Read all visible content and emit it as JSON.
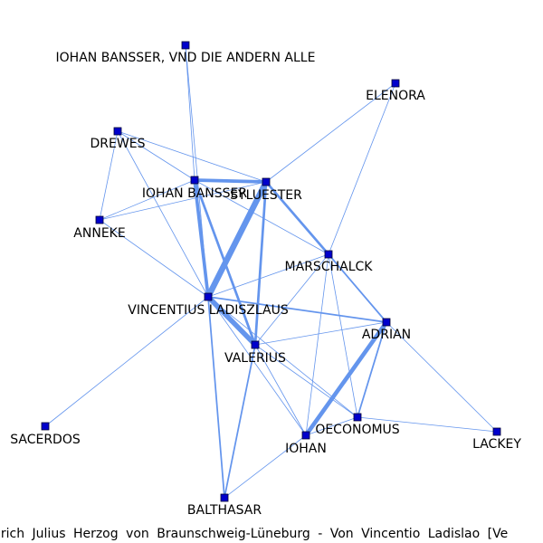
{
  "caption": "nrich Julius Herzog von Braunschweig-Lüneburg - Von Vincentio Ladislao [Ve",
  "colors": {
    "edge": "#6495ED",
    "node": "#0000CC"
  },
  "nodes": [
    {
      "id": "IOHAN BANSSER, VND DIE ANDERN ALLE",
      "label": "IOHAN BANSSER, VND DIE ANDERN ALLE"
    },
    {
      "id": "ELENORA",
      "label": "ELENORA"
    },
    {
      "id": "DREWES",
      "label": "DREWES"
    },
    {
      "id": "IOHAN BANSSER",
      "label": "IOHAN BANSSER"
    },
    {
      "id": "SYLUESTER",
      "label": "SYLUESTER"
    },
    {
      "id": "ANNEKE",
      "label": "ANNEKE"
    },
    {
      "id": "MARSCHALCK",
      "label": "MARSCHALCK"
    },
    {
      "id": "VINCENTIUS LADISZLAUS",
      "label": "VINCENTIUS LADISZLAUS"
    },
    {
      "id": "ADRIAN",
      "label": "ADRIAN"
    },
    {
      "id": "VALERIUS",
      "label": "VALERIUS"
    },
    {
      "id": "SACERDOS",
      "label": "SACERDOS"
    },
    {
      "id": "OECONOMUS",
      "label": "OECONOMUS"
    },
    {
      "id": "IOHAN",
      "label": "IOHAN"
    },
    {
      "id": "LACKEY",
      "label": "LACKEY"
    },
    {
      "id": "BALTHASAR",
      "label": "BALTHASAR"
    }
  ],
  "edges": [
    {
      "source": "IOHAN BANSSER, VND DIE ANDERN ALLE",
      "target": "IOHAN BANSSER",
      "weight": 1
    },
    {
      "source": "IOHAN BANSSER, VND DIE ANDERN ALLE",
      "target": "VINCENTIUS LADISZLAUS",
      "weight": 1
    },
    {
      "source": "ELENORA",
      "target": "SYLUESTER",
      "weight": 1
    },
    {
      "source": "ELENORA",
      "target": "MARSCHALCK",
      "weight": 1
    },
    {
      "source": "DREWES",
      "target": "IOHAN BANSSER",
      "weight": 1
    },
    {
      "source": "DREWES",
      "target": "SYLUESTER",
      "weight": 1
    },
    {
      "source": "DREWES",
      "target": "ANNEKE",
      "weight": 1
    },
    {
      "source": "DREWES",
      "target": "VINCENTIUS LADISZLAUS",
      "weight": 1
    },
    {
      "source": "ANNEKE",
      "target": "IOHAN BANSSER",
      "weight": 1
    },
    {
      "source": "ANNEKE",
      "target": "SYLUESTER",
      "weight": 1
    },
    {
      "source": "ANNEKE",
      "target": "VINCENTIUS LADISZLAUS",
      "weight": 1
    },
    {
      "source": "IOHAN BANSSER",
      "target": "SYLUESTER",
      "weight": 4
    },
    {
      "source": "IOHAN BANSSER",
      "target": "VINCENTIUS LADISZLAUS",
      "weight": 4
    },
    {
      "source": "IOHAN BANSSER",
      "target": "VALERIUS",
      "weight": 3
    },
    {
      "source": "IOHAN BANSSER",
      "target": "MARSCHALCK",
      "weight": 1
    },
    {
      "source": "SYLUESTER",
      "target": "VINCENTIUS LADISZLAUS",
      "weight": 7
    },
    {
      "source": "SYLUESTER",
      "target": "VALERIUS",
      "weight": 3
    },
    {
      "source": "SYLUESTER",
      "target": "MARSCHALCK",
      "weight": 3
    },
    {
      "source": "MARSCHALCK",
      "target": "ADRIAN",
      "weight": 2
    },
    {
      "source": "MARSCHALCK",
      "target": "VINCENTIUS LADISZLAUS",
      "weight": 1
    },
    {
      "source": "MARSCHALCK",
      "target": "VALERIUS",
      "weight": 1
    },
    {
      "source": "MARSCHALCK",
      "target": "IOHAN",
      "weight": 1
    },
    {
      "source": "MARSCHALCK",
      "target": "OECONOMUS",
      "weight": 1
    },
    {
      "source": "VINCENTIUS LADISZLAUS",
      "target": "ADRIAN",
      "weight": 2
    },
    {
      "source": "VINCENTIUS LADISZLAUS",
      "target": "VALERIUS",
      "weight": 6
    },
    {
      "source": "VINCENTIUS LADISZLAUS",
      "target": "SACERDOS",
      "weight": 1
    },
    {
      "source": "VINCENTIUS LADISZLAUS",
      "target": "BALTHASAR",
      "weight": 2
    },
    {
      "source": "VINCENTIUS LADISZLAUS",
      "target": "OECONOMUS",
      "weight": 1
    },
    {
      "source": "VINCENTIUS LADISZLAUS",
      "target": "IOHAN",
      "weight": 1
    },
    {
      "source": "ADRIAN",
      "target": "IOHAN",
      "weight": 5
    },
    {
      "source": "ADRIAN",
      "target": "OECONOMUS",
      "weight": 2
    },
    {
      "source": "ADRIAN",
      "target": "LACKEY",
      "weight": 1
    },
    {
      "source": "VALERIUS",
      "target": "BALTHASAR",
      "weight": 2
    },
    {
      "source": "VALERIUS",
      "target": "IOHAN",
      "weight": 1
    },
    {
      "source": "VALERIUS",
      "target": "OECONOMUS",
      "weight": 1
    },
    {
      "source": "VALERIUS",
      "target": "ADRIAN",
      "weight": 1
    },
    {
      "source": "OECONOMUS",
      "target": "LACKEY",
      "weight": 1
    },
    {
      "source": "OECONOMUS",
      "target": "IOHAN",
      "weight": 1
    },
    {
      "source": "IOHAN",
      "target": "BALTHASAR",
      "weight": 1
    }
  ]
}
